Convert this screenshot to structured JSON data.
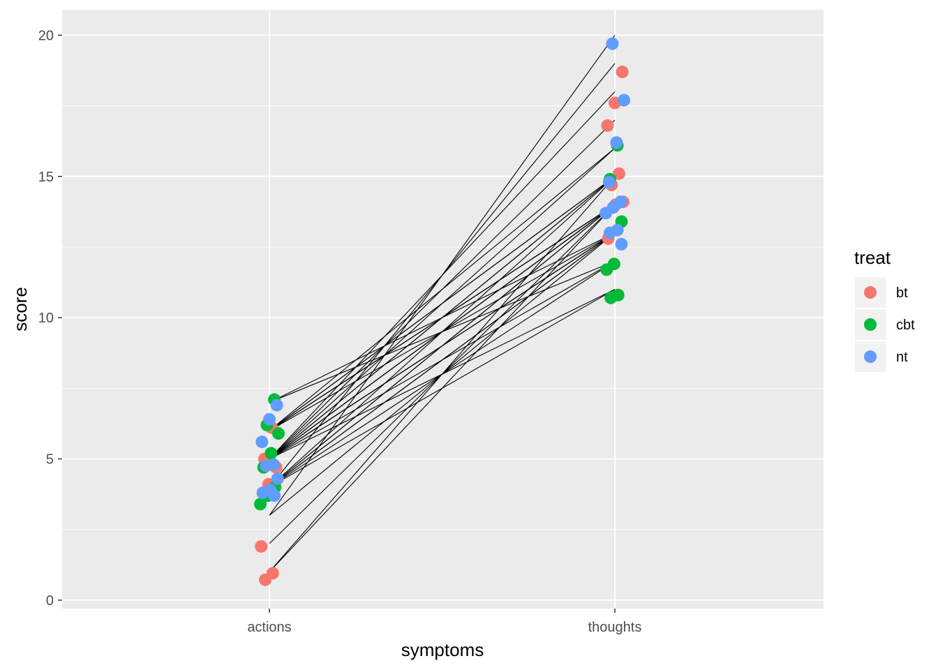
{
  "chart_data": {
    "type": "scatter",
    "xlabel": "symptoms",
    "ylabel": "score",
    "categories": [
      "actions",
      "thoughts"
    ],
    "ylim": [
      -0.3,
      20.9
    ],
    "y_ticks": [
      0,
      5,
      10,
      15,
      20
    ],
    "grid": true,
    "legend": {
      "title": "treat",
      "position": "right",
      "entries": [
        {
          "name": "bt",
          "color": "#F8766D"
        },
        {
          "name": "cbt",
          "color": "#00BA38"
        },
        {
          "name": "nt",
          "color": "#619CFF"
        }
      ]
    },
    "connecting_lines": [
      {
        "actions": 7,
        "thoughts": 12
      },
      {
        "actions": 7,
        "thoughts": 13
      },
      {
        "actions": 6,
        "thoughts": 13
      },
      {
        "actions": 6,
        "thoughts": 14
      },
      {
        "actions": 6,
        "thoughts": 14
      },
      {
        "actions": 6,
        "thoughts": 15
      },
      {
        "actions": 6,
        "thoughts": 15
      },
      {
        "actions": 6,
        "thoughts": 16
      },
      {
        "actions": 6,
        "thoughts": 14
      },
      {
        "actions": 5,
        "thoughts": 11
      },
      {
        "actions": 5,
        "thoughts": 13
      },
      {
        "actions": 5,
        "thoughts": 13
      },
      {
        "actions": 5,
        "thoughts": 14
      },
      {
        "actions": 5,
        "thoughts": 14
      },
      {
        "actions": 5,
        "thoughts": 15
      },
      {
        "actions": 5,
        "thoughts": 15
      },
      {
        "actions": 5,
        "thoughts": 16
      },
      {
        "actions": 5,
        "thoughts": 17
      },
      {
        "actions": 5,
        "thoughts": 18
      },
      {
        "actions": 5,
        "thoughts": 14
      },
      {
        "actions": 5,
        "thoughts": 13
      },
      {
        "actions": 5,
        "thoughts": 12
      },
      {
        "actions": 4,
        "thoughts": 11
      },
      {
        "actions": 4,
        "thoughts": 12
      },
      {
        "actions": 4,
        "thoughts": 13
      },
      {
        "actions": 4,
        "thoughts": 13
      },
      {
        "actions": 4,
        "thoughts": 14
      },
      {
        "actions": 4,
        "thoughts": 14
      },
      {
        "actions": 4,
        "thoughts": 15
      },
      {
        "actions": 4,
        "thoughts": 19
      },
      {
        "actions": 3,
        "thoughts": 13
      },
      {
        "actions": 3,
        "thoughts": 20
      },
      {
        "actions": 2,
        "thoughts": 14
      },
      {
        "actions": 1,
        "thoughts": 15
      },
      {
        "actions": 1,
        "thoughts": 14
      }
    ],
    "series": [
      {
        "name": "bt",
        "points": [
          {
            "x": "actions",
            "y": 6.1
          },
          {
            "x": "actions",
            "y": 5.0
          },
          {
            "x": "actions",
            "y": 4.7
          },
          {
            "x": "actions",
            "y": 4.1
          },
          {
            "x": "actions",
            "y": 1.9
          },
          {
            "x": "actions",
            "y": 0.95
          },
          {
            "x": "actions",
            "y": 0.72
          },
          {
            "x": "thoughts",
            "y": 18.7
          },
          {
            "x": "thoughts",
            "y": 17.6
          },
          {
            "x": "thoughts",
            "y": 16.8
          },
          {
            "x": "thoughts",
            "y": 15.1
          },
          {
            "x": "thoughts",
            "y": 14.7
          },
          {
            "x": "thoughts",
            "y": 14.1
          },
          {
            "x": "thoughts",
            "y": 14.0
          },
          {
            "x": "thoughts",
            "y": 12.8
          }
        ]
      },
      {
        "name": "cbt",
        "points": [
          {
            "x": "actions",
            "y": 7.1
          },
          {
            "x": "actions",
            "y": 6.2
          },
          {
            "x": "actions",
            "y": 5.9
          },
          {
            "x": "actions",
            "y": 5.2
          },
          {
            "x": "actions",
            "y": 4.7
          },
          {
            "x": "actions",
            "y": 4.0
          },
          {
            "x": "actions",
            "y": 3.7
          },
          {
            "x": "actions",
            "y": 3.4
          },
          {
            "x": "thoughts",
            "y": 16.1
          },
          {
            "x": "thoughts",
            "y": 14.9
          },
          {
            "x": "thoughts",
            "y": 13.4
          },
          {
            "x": "thoughts",
            "y": 11.9
          },
          {
            "x": "thoughts",
            "y": 11.7
          },
          {
            "x": "thoughts",
            "y": 10.8
          },
          {
            "x": "thoughts",
            "y": 10.7
          }
        ]
      },
      {
        "name": "nt",
        "points": [
          {
            "x": "actions",
            "y": 6.9
          },
          {
            "x": "actions",
            "y": 6.4
          },
          {
            "x": "actions",
            "y": 5.6
          },
          {
            "x": "actions",
            "y": 4.8
          },
          {
            "x": "actions",
            "y": 4.75
          },
          {
            "x": "actions",
            "y": 4.3
          },
          {
            "x": "actions",
            "y": 3.9
          },
          {
            "x": "actions",
            "y": 3.8
          },
          {
            "x": "actions",
            "y": 3.7
          },
          {
            "x": "thoughts",
            "y": 19.7
          },
          {
            "x": "thoughts",
            "y": 17.7
          },
          {
            "x": "thoughts",
            "y": 16.2
          },
          {
            "x": "thoughts",
            "y": 14.8
          },
          {
            "x": "thoughts",
            "y": 14.1
          },
          {
            "x": "thoughts",
            "y": 13.9
          },
          {
            "x": "thoughts",
            "y": 13.7
          },
          {
            "x": "thoughts",
            "y": 13.1
          },
          {
            "x": "thoughts",
            "y": 13.0
          },
          {
            "x": "thoughts",
            "y": 12.6
          }
        ]
      }
    ]
  }
}
